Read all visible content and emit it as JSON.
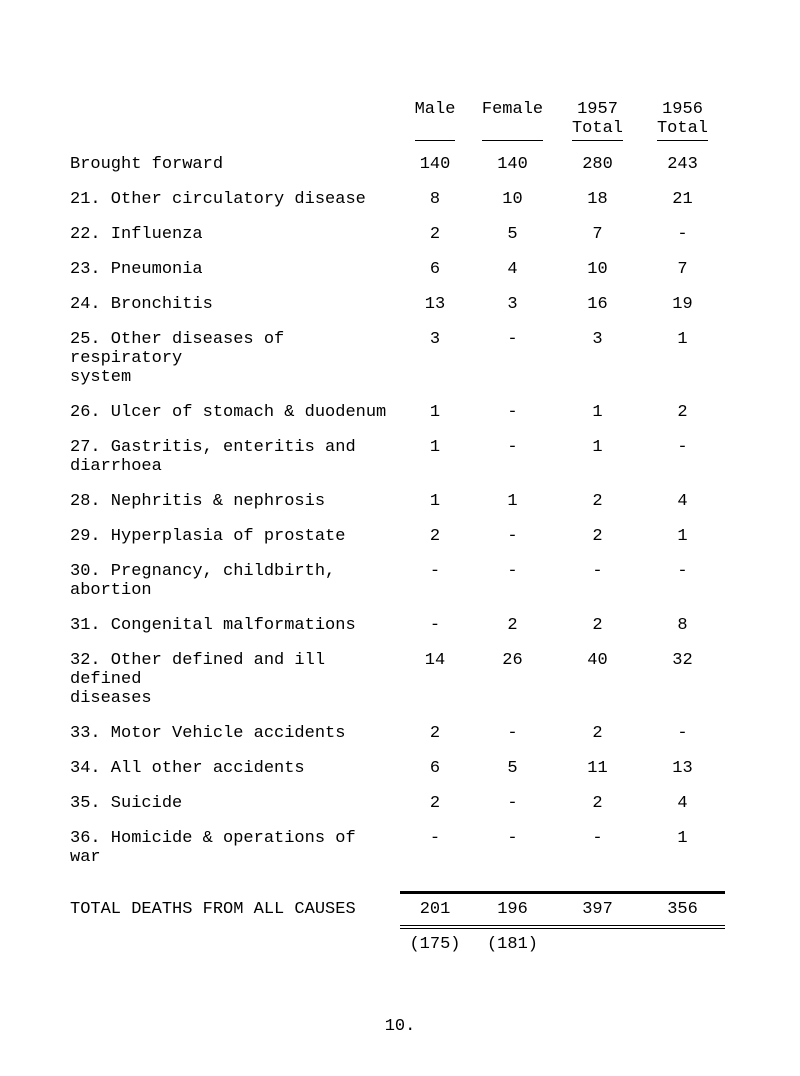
{
  "headers": {
    "male": "Male",
    "female": "Female",
    "y57_top": "1957",
    "y57_bottom": "Total",
    "y56_top": "1956",
    "y56_bottom": "Total"
  },
  "rows": [
    {
      "label": "Brought forward",
      "male": "140",
      "female": "140",
      "t57": "280",
      "t56": "243"
    },
    {
      "label": "21. Other circulatory disease",
      "male": "8",
      "female": "10",
      "t57": "18",
      "t56": "21"
    },
    {
      "label": "22. Influenza",
      "male": "2",
      "female": "5",
      "t57": "7",
      "t56": "-"
    },
    {
      "label": "23. Pneumonia",
      "male": "6",
      "female": "4",
      "t57": "10",
      "t56": "7"
    },
    {
      "label": "24. Bronchitis",
      "male": "13",
      "female": "3",
      "t57": "16",
      "t56": "19"
    },
    {
      "label": "25. Other diseases of respiratory\n    system",
      "male": "3",
      "female": "-",
      "t57": "3",
      "t56": "1"
    },
    {
      "label": "26. Ulcer of stomach & duodenum",
      "male": "1",
      "female": "-",
      "t57": "1",
      "t56": "2"
    },
    {
      "label": "27. Gastritis, enteritis and\n    diarrhoea",
      "male": "1",
      "female": "-",
      "t57": "1",
      "t56": "-"
    },
    {
      "label": "28. Nephritis & nephrosis",
      "male": "1",
      "female": "1",
      "t57": "2",
      "t56": "4"
    },
    {
      "label": "29. Hyperplasia of prostate",
      "male": "2",
      "female": "-",
      "t57": "2",
      "t56": "1"
    },
    {
      "label": "30. Pregnancy, childbirth, abortion",
      "male": "-",
      "female": "-",
      "t57": "-",
      "t56": "-"
    },
    {
      "label": "31. Congenital malformations",
      "male": "-",
      "female": "2",
      "t57": "2",
      "t56": "8"
    },
    {
      "label": "32. Other defined and ill defined\n    diseases",
      "male": "14",
      "female": "26",
      "t57": "40",
      "t56": "32"
    },
    {
      "label": "33. Motor Vehicle accidents",
      "male": "2",
      "female": "-",
      "t57": "2",
      "t56": "-"
    },
    {
      "label": "34. All other accidents",
      "male": "6",
      "female": "5",
      "t57": "11",
      "t56": "13"
    },
    {
      "label": "35. Suicide",
      "male": "2",
      "female": "-",
      "t57": "2",
      "t56": "4"
    },
    {
      "label": "36. Homicide & operations of war",
      "male": "-",
      "female": "-",
      "t57": "-",
      "t56": "1"
    }
  ],
  "total": {
    "label": "TOTAL DEATHS FROM ALL CAUSES",
    "male": "201",
    "female": "196",
    "t57": "397",
    "t56": "356"
  },
  "parens": {
    "male": "(175)",
    "female": "(181)"
  },
  "page_num": "10.",
  "colors": {
    "bg": "#ffffff",
    "text": "#000000",
    "rule": "#000000"
  },
  "typography": {
    "font_family": "Courier New, monospace",
    "font_size_pt": 12,
    "font_weight": "normal"
  }
}
